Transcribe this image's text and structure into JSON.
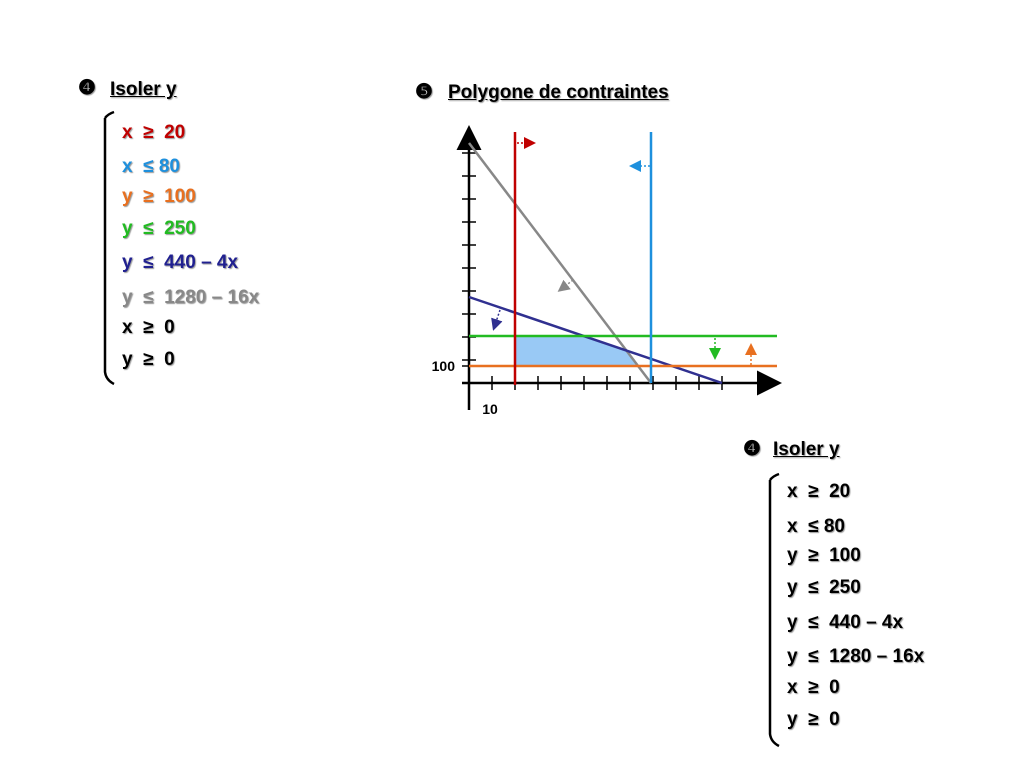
{
  "left_panel": {
    "marker": "❹",
    "title": "Isoler y",
    "constraints": [
      "x  ≥  20",
      "x  ≤ 80",
      "y  ≥  100",
      "y  ≤  250",
      "y  ≤  440 – 4x",
      "y  ≤  1280 – 16x",
      "x  ≥  0",
      "y  ≥  0"
    ]
  },
  "graph_panel": {
    "marker": "❺",
    "title": "Polygone de contraintes",
    "y_axis_label": "100",
    "x_axis_label": "10"
  },
  "right_panel": {
    "marker": "❹",
    "title": "Isoler y",
    "constraints": [
      "x  ≥  20",
      "x  ≤ 80",
      "y  ≥  100",
      "y  ≤  250",
      "y  ≤  440 – 4x",
      "y  ≤  1280 – 16x",
      "x  ≥  0",
      "y  ≥  0"
    ]
  }
}
